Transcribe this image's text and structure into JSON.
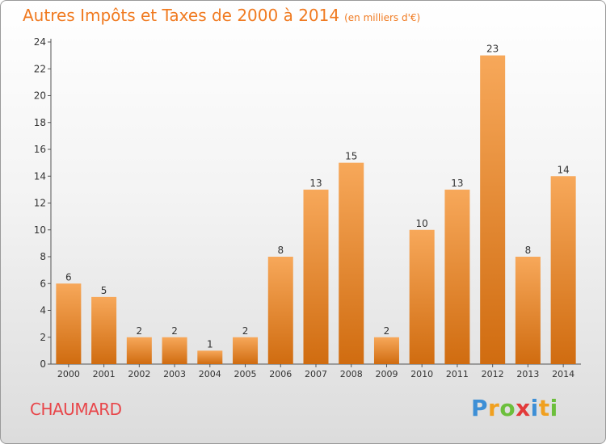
{
  "header": {
    "title": "Autres Impôts et Taxes de 2000 à 2014",
    "subtitle": "(en milliers d'€)"
  },
  "footer": {
    "commune": "CHAUMARD",
    "logo": [
      "P",
      "r",
      "o",
      "x",
      "i",
      "t",
      "i"
    ]
  },
  "colors": {
    "title": "#f07a20",
    "commune": "#e8464a",
    "bar_top": "#f7a85a",
    "bar_bottom": "#d06c10",
    "axis": "#555555"
  },
  "chart_data": {
    "type": "bar",
    "categories": [
      "2000",
      "2001",
      "2002",
      "2003",
      "2004",
      "2005",
      "2006",
      "2007",
      "2008",
      "2009",
      "2010",
      "2011",
      "2012",
      "2013",
      "2014"
    ],
    "values": [
      6,
      5,
      2,
      2,
      1,
      2,
      8,
      13,
      15,
      2,
      10,
      13,
      23,
      8,
      14
    ],
    "title": "Autres Impôts et Taxes de 2000 à 2014",
    "subtitle": "(en milliers d'€)",
    "xlabel": "",
    "ylabel": "",
    "ylim": [
      0,
      24
    ],
    "yticks": [
      0,
      2,
      4,
      6,
      8,
      10,
      12,
      14,
      16,
      18,
      20,
      22,
      24
    ],
    "grid": false,
    "legend": "none"
  }
}
